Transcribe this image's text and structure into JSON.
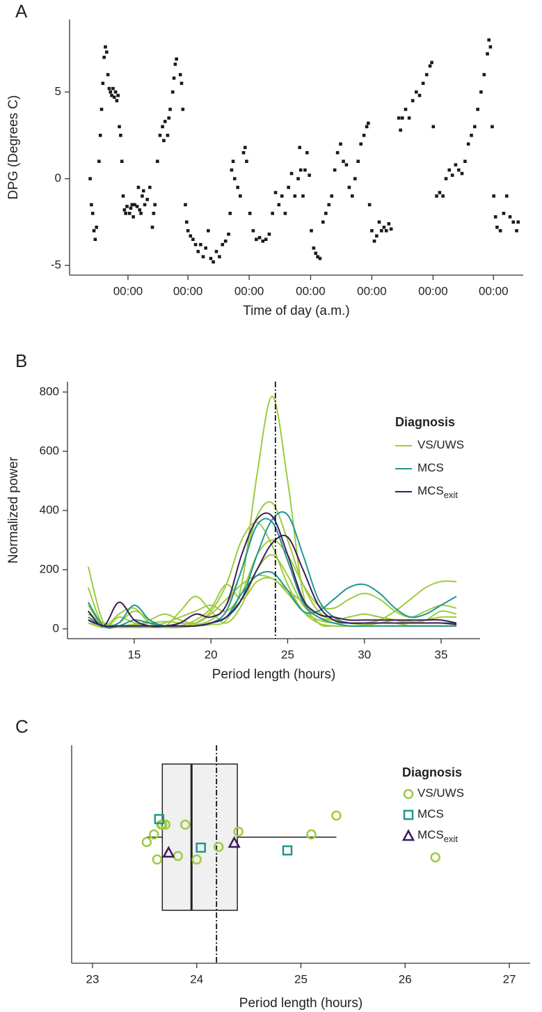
{
  "chart_data": [
    {
      "type": "scatter",
      "panel": "A",
      "ylabel": "DPG (Degrees C)",
      "xlabel": "Time of day (a.m.)",
      "color": "#1a1a1a",
      "xlim": [
        -7.6,
        171
      ],
      "ylim": [
        -5.56,
        9.18
      ],
      "yticks": [
        -5,
        0,
        5
      ],
      "xticks": [
        {
          "value": 15.4,
          "label": "00:00"
        },
        {
          "value": 39,
          "label": "00:00"
        },
        {
          "value": 63.1,
          "label": "00:00"
        },
        {
          "value": 87.3,
          "label": "00:00"
        },
        {
          "value": 111.4,
          "label": "00:00"
        },
        {
          "value": 135.5,
          "label": "00:00"
        },
        {
          "value": 159.3,
          "label": "00:00"
        }
      ],
      "x": [
        0.5,
        1,
        1.5,
        2,
        2.5,
        3,
        4,
        4.5,
        5,
        5.5,
        6,
        6.5,
        7,
        7.5,
        8,
        8.5,
        9,
        9.5,
        10,
        10.5,
        11,
        11.5,
        12,
        12.5,
        13,
        13.5,
        14,
        14.5,
        15,
        16,
        16.5,
        17,
        17.5,
        18,
        19,
        19.5,
        20,
        20.5,
        21,
        21.5,
        22,
        23,
        24,
        25,
        25.5,
        26,
        27,
        28,
        29,
        29.5,
        30,
        31,
        31.5,
        32,
        33,
        33.5,
        34,
        34.5,
        36,
        36.5,
        37,
        38,
        38.5,
        39,
        40,
        41,
        42,
        43,
        44,
        45,
        46,
        47,
        48,
        49,
        50.2,
        51.4,
        52.6,
        53.8,
        55,
        55.6,
        56.2,
        56.8,
        57.4,
        58.6,
        59.6,
        60.9,
        61.5,
        62.1,
        63.4,
        64.7,
        65.9,
        67.2,
        68.5,
        69.7,
        71,
        72.3,
        73.5,
        74.8,
        76,
        77.3,
        78.6,
        79.8,
        81.1,
        82.4,
        83,
        83.4,
        84.3,
        85.1,
        85.9,
        86.8,
        87.6,
        88.5,
        89.3,
        90.1,
        91,
        92.2,
        93.3,
        94.5,
        95.6,
        96.8,
        97.9,
        99.1,
        100.2,
        101.4,
        102.5,
        103.7,
        104.8,
        106,
        107.1,
        108.3,
        109.4,
        110,
        110.5,
        111.4,
        112.4,
        113.3,
        114.3,
        115.2,
        116.2,
        117.1,
        118.1,
        119,
        122,
        122.7,
        123.4,
        124.7,
        126.1,
        127.5,
        128.9,
        130.2,
        131.6,
        133,
        134.3,
        135,
        135.6,
        136.9,
        138.1,
        139.4,
        140.6,
        141.9,
        143.1,
        144.4,
        145.6,
        146.9,
        148.1,
        149.4,
        150.6,
        151.9,
        153.1,
        154.4,
        155.6,
        156.9,
        157.5,
        158.1,
        158.8,
        159.4,
        160.1,
        160.7,
        162,
        163.3,
        164.5,
        165.8,
        167.1,
        168.4,
        169
      ],
      "values": [
        0,
        -1.5,
        -2,
        -3,
        -3.5,
        -2.8,
        1,
        2.5,
        4,
        5.5,
        7,
        7.6,
        7.3,
        6,
        5.2,
        5,
        4.8,
        5.2,
        4.7,
        5,
        4.5,
        4.8,
        3,
        2.5,
        1,
        -1,
        -1.8,
        -2,
        -1.6,
        -2,
        -1.7,
        -1.5,
        -2.2,
        -1.5,
        -1.6,
        -0.5,
        -1.8,
        -2,
        -1,
        -0.7,
        -1.5,
        -1.2,
        -0.5,
        -2.8,
        -2,
        -1.5,
        1,
        2.5,
        3,
        2.2,
        3.3,
        2.5,
        3.5,
        4,
        5,
        5.8,
        6.6,
        6.9,
        6,
        5.5,
        4,
        -1.5,
        -2.5,
        -3,
        -3.3,
        -3.5,
        -3.8,
        -4.2,
        -3.8,
        -4.5,
        -4,
        -3,
        -4.6,
        -4.8,
        -4.2,
        -4.5,
        -3.8,
        -3.6,
        -3.2,
        -2,
        0.5,
        1,
        0,
        -0.5,
        -1,
        1.5,
        1.8,
        1,
        -2,
        -3,
        -3.5,
        -3.4,
        -3.6,
        -3.5,
        -3.2,
        -2,
        -0.8,
        -1.5,
        -1,
        -2,
        -0.5,
        0.3,
        -1,
        0,
        1.8,
        0.5,
        -1,
        0.5,
        1.5,
        0.2,
        -3,
        -4,
        -4.3,
        -4.5,
        -4.6,
        -2.5,
        -2,
        -1.5,
        -1,
        0.5,
        1.5,
        2,
        1,
        0.8,
        -0.5,
        -1,
        0,
        1,
        2,
        2.5,
        3,
        3.2,
        -1.5,
        -3,
        -3.6,
        -3.3,
        -2.5,
        -3,
        -2.8,
        -3,
        -2.6,
        -2.9,
        3.5,
        2.8,
        3.5,
        4,
        3.5,
        4.5,
        5,
        4.8,
        5.5,
        6,
        6.5,
        6.7,
        3,
        -1,
        -0.8,
        -1,
        0,
        0.5,
        0.2,
        0.8,
        0.5,
        0.3,
        1,
        2,
        2.5,
        3,
        4,
        5,
        6,
        7.2,
        8,
        7.6,
        3,
        -1,
        -2.2,
        -2.8,
        -3,
        -2,
        -1,
        -2.2,
        -2.5,
        -3,
        -2.5
      ]
    },
    {
      "type": "line",
      "panel": "B",
      "ylabel": "Normalized power",
      "xlabel": "Period length (hours)",
      "xlim": [
        10.65,
        37.54
      ],
      "ylim": [
        -33,
        835
      ],
      "xticks": [
        15,
        20,
        25,
        30,
        35
      ],
      "yticks": [
        0,
        200,
        400,
        600,
        800
      ],
      "vline": 24.2,
      "legend_title": "Diagnosis",
      "x": [
        12,
        13,
        14,
        15,
        16,
        17,
        18,
        19,
        20,
        21,
        22,
        23,
        24,
        25,
        26,
        27,
        28,
        29,
        30,
        31,
        32,
        33,
        34,
        35,
        36
      ],
      "groups": [
        {
          "name": "VS/UWS",
          "color": "#9dcb3f",
          "curves": [
            [
              20,
              5,
              10,
              5,
              5,
              5,
              5,
              10,
              15,
              30,
              150,
              520,
              785,
              500,
              120,
              20,
              10,
              10,
              10,
              10,
              10,
              10,
              10,
              10,
              10
            ],
            [
              210,
              20,
              10,
              15,
              20,
              25,
              20,
              15,
              30,
              80,
              200,
              380,
              425,
              300,
              150,
              60,
              30,
              20,
              15,
              20,
              30,
              25,
              20,
              20,
              15
            ],
            [
              140,
              10,
              40,
              20,
              10,
              20,
              40,
              60,
              80,
              60,
              120,
              250,
              300,
              250,
              150,
              80,
              70,
              100,
              120,
              100,
              60,
              40,
              60,
              80,
              70
            ],
            [
              80,
              10,
              20,
              60,
              30,
              10,
              60,
              110,
              60,
              20,
              80,
              200,
              250,
              180,
              80,
              40,
              30,
              40,
              50,
              40,
              30,
              20,
              30,
              60,
              50
            ],
            [
              50,
              20,
              10,
              10,
              30,
              50,
              30,
              20,
              50,
              100,
              150,
              180,
              170,
              130,
              90,
              50,
              30,
              20,
              20,
              30,
              60,
              100,
              140,
              160,
              160
            ],
            [
              30,
              5,
              50,
              70,
              20,
              5,
              10,
              30,
              70,
              150,
              100,
              160,
              170,
              120,
              60,
              30,
              20,
              20,
              20,
              20,
              20,
              20,
              30,
              40,
              40
            ],
            [
              60,
              10,
              5,
              5,
              5,
              5,
              5,
              20,
              60,
              150,
              300,
              360,
              280,
              150,
              60,
              20,
              10,
              10,
              10,
              20,
              20,
              10,
              10,
              10,
              10
            ]
          ]
        },
        {
          "name": "MCS",
          "color": "#1f9693",
          "curves": [
            [
              40,
              10,
              10,
              10,
              10,
              10,
              10,
              10,
              20,
              40,
              100,
              250,
              370,
              385,
              250,
              100,
              40,
              20,
              20,
              20,
              20,
              20,
              20,
              20,
              20
            ],
            [
              30,
              10,
              20,
              80,
              30,
              10,
              10,
              10,
              20,
              40,
              120,
              180,
              190,
              130,
              60,
              60,
              100,
              140,
              150,
              120,
              70,
              40,
              50,
              80,
              110
            ],
            [
              90,
              10,
              10,
              30,
              20,
              10,
              10,
              10,
              20,
              60,
              200,
              350,
              360,
              230,
              90,
              40,
              20,
              10,
              10,
              10,
              10,
              10,
              10,
              10,
              10
            ]
          ]
        },
        {
          "name": "MCS",
          "subscript": "exit",
          "color": "#3d1a5b",
          "curves": [
            [
              60,
              10,
              90,
              30,
              10,
              10,
              20,
              50,
              40,
              80,
              250,
              370,
              380,
              250,
              100,
              50,
              40,
              30,
              30,
              30,
              30,
              30,
              30,
              30,
              20
            ],
            [
              30,
              10,
              10,
              10,
              10,
              10,
              10,
              10,
              20,
              40,
              100,
              200,
              290,
              310,
              200,
              80,
              30,
              20,
              20,
              20,
              20,
              20,
              20,
              20,
              15
            ]
          ]
        }
      ]
    },
    {
      "type": "box",
      "panel": "C",
      "xlabel": "Period length (hours)",
      "xlim": [
        22.8,
        27.2
      ],
      "xticks": [
        23,
        24,
        25,
        26,
        27
      ],
      "vline": 24.19,
      "legend_title": "Diagnosis",
      "box": {
        "whisker_low": 23.52,
        "q1": 23.67,
        "median": 23.95,
        "q3": 24.39,
        "whisker_high": 25.34
      },
      "groups": [
        {
          "name": "VS/UWS",
          "color": "#9dcb3f",
          "marker": "circle",
          "values": [
            23.52,
            23.59,
            23.62,
            23.66,
            23.67,
            23.7,
            23.82,
            23.89,
            24.0,
            24.21,
            24.4,
            25.1,
            25.34,
            26.29
          ]
        },
        {
          "name": "MCS",
          "color": "#1f9693",
          "marker": "square",
          "values": [
            23.64,
            24.04,
            24.87
          ]
        },
        {
          "name": "MCS",
          "subscript": "exit",
          "color": "#3d1a5b",
          "marker": "triangle",
          "values": [
            23.73,
            24.36
          ]
        }
      ]
    }
  ]
}
